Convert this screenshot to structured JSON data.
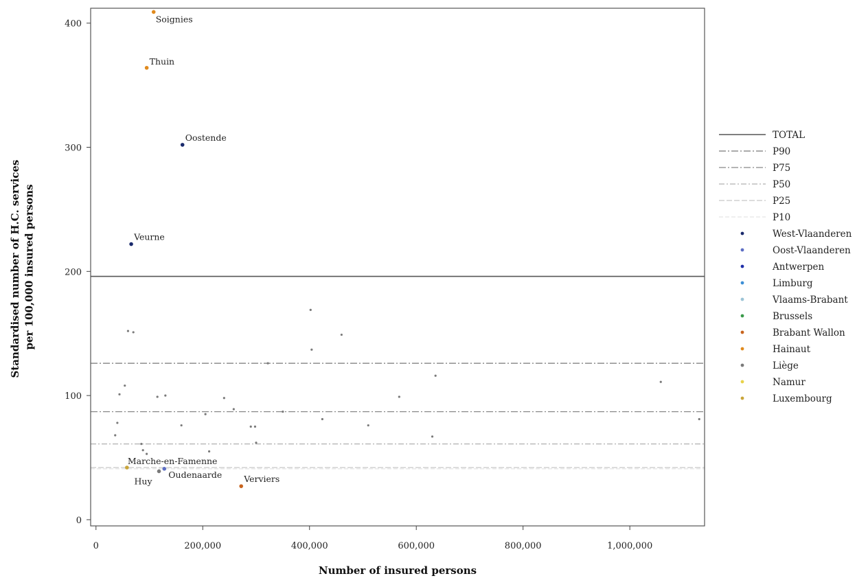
{
  "chart_data": {
    "type": "scatter",
    "xlabel": "Number of insured persons",
    "ylabel_lines": [
      "Standardised number of H.C. services",
      "per 100,000 insured persons"
    ],
    "xlim": [
      -10000,
      1140000
    ],
    "ylim": [
      -5,
      412
    ],
    "x_ticks": [
      {
        "value": 0,
        "label": "0"
      },
      {
        "value": 200000,
        "label": "200,000"
      },
      {
        "value": 400000,
        "label": "400,000"
      },
      {
        "value": 600000,
        "label": "600,000"
      },
      {
        "value": 800000,
        "label": "800,000"
      },
      {
        "value": 1000000,
        "label": "1,000,000"
      }
    ],
    "y_ticks": [
      {
        "value": 0,
        "label": "0"
      },
      {
        "value": 100,
        "label": "100"
      },
      {
        "value": 200,
        "label": "200"
      },
      {
        "value": 300,
        "label": "300"
      },
      {
        "value": 400,
        "label": "400"
      }
    ],
    "reference_lines": [
      {
        "name": "TOTAL",
        "y": 196,
        "color": "#555555",
        "dash": "",
        "width": 1.6
      },
      {
        "name": "P90",
        "y": 126,
        "color": "#777777",
        "dash": "10,3,2,3",
        "width": 1.3
      },
      {
        "name": "P75",
        "y": 87,
        "color": "#888888",
        "dash": "10,3,2,3",
        "width": 1.3
      },
      {
        "name": "P50",
        "y": 61,
        "color": "#b0b0b0",
        "dash": "8,3,2,3",
        "width": 1.2
      },
      {
        "name": "P25",
        "y": 42,
        "color": "#c8c8c8",
        "dash": "8,3",
        "width": 1.2
      },
      {
        "name": "P10",
        "y": 41,
        "color": "#dddddd",
        "dash": "6,3",
        "width": 1.0
      }
    ],
    "groups": [
      {
        "name": "West-Vlaanderen",
        "color": "#1a2a6c"
      },
      {
        "name": "Oost-Vlaanderen",
        "color": "#5c6ec4"
      },
      {
        "name": "Antwerpen",
        "color": "#1f2fa8"
      },
      {
        "name": "Limburg",
        "color": "#3d8fd6"
      },
      {
        "name": "Vlaams-Brabant",
        "color": "#9cc4d6"
      },
      {
        "name": "Brussels",
        "color": "#3a9a4a"
      },
      {
        "name": "Brabant Wallon",
        "color": "#c8641e"
      },
      {
        "name": "Hainaut",
        "color": "#e08a1e"
      },
      {
        "name": "Liège",
        "color": "#7a7a7a"
      },
      {
        "name": "Namur",
        "color": "#e8d24a"
      },
      {
        "name": "Luxembourg",
        "color": "#c9a53a"
      }
    ],
    "points": [
      {
        "x": 108000,
        "y": 409,
        "group": "Hainaut",
        "label": "Soignies"
      },
      {
        "x": 95000,
        "y": 364,
        "group": "Hainaut",
        "label": "Thuin"
      },
      {
        "x": 162000,
        "y": 302,
        "group": "West-Vlaanderen",
        "label": "Oostende"
      },
      {
        "x": 66000,
        "y": 222,
        "group": "West-Vlaanderen",
        "label": "Veurne"
      },
      {
        "x": 58000,
        "y": 42,
        "group": "Luxembourg",
        "label": "Marche-en-Famenne"
      },
      {
        "x": 118000,
        "y": 39,
        "group": "Liège",
        "label": "Huy"
      },
      {
        "x": 128000,
        "y": 41,
        "group": "Oost-Vlaanderen",
        "label": "Oudenaarde"
      },
      {
        "x": 272000,
        "y": 27,
        "group": "Brabant Wallon",
        "label": "Verviers"
      },
      {
        "x": 60000,
        "y": 152,
        "group": "Liège",
        "label": ""
      },
      {
        "x": 70000,
        "y": 151,
        "group": "Liège",
        "label": ""
      },
      {
        "x": 54000,
        "y": 108,
        "group": "Liège",
        "label": ""
      },
      {
        "x": 44000,
        "y": 101,
        "group": "Liège",
        "label": ""
      },
      {
        "x": 40000,
        "y": 78,
        "group": "Liège",
        "label": ""
      },
      {
        "x": 36000,
        "y": 68,
        "group": "Liège",
        "label": ""
      },
      {
        "x": 85000,
        "y": 61,
        "group": "Liège",
        "label": ""
      },
      {
        "x": 88000,
        "y": 56,
        "group": "Liège",
        "label": ""
      },
      {
        "x": 95000,
        "y": 53,
        "group": "Liège",
        "label": ""
      },
      {
        "x": 115000,
        "y": 99,
        "group": "Liège",
        "label": ""
      },
      {
        "x": 130000,
        "y": 100,
        "group": "Liège",
        "label": ""
      },
      {
        "x": 160000,
        "y": 76,
        "group": "Liège",
        "label": ""
      },
      {
        "x": 205000,
        "y": 85,
        "group": "Liège",
        "label": ""
      },
      {
        "x": 212000,
        "y": 55,
        "group": "Liège",
        "label": ""
      },
      {
        "x": 240000,
        "y": 98,
        "group": "Liège",
        "label": ""
      },
      {
        "x": 258000,
        "y": 89,
        "group": "Liège",
        "label": ""
      },
      {
        "x": 290000,
        "y": 75,
        "group": "Liège",
        "label": ""
      },
      {
        "x": 298000,
        "y": 75,
        "group": "Liège",
        "label": ""
      },
      {
        "x": 300000,
        "y": 62,
        "group": "Liège",
        "label": ""
      },
      {
        "x": 322000,
        "y": 126,
        "group": "Liège",
        "label": ""
      },
      {
        "x": 350000,
        "y": 87,
        "group": "Liège",
        "label": ""
      },
      {
        "x": 402000,
        "y": 169,
        "group": "Liège",
        "label": ""
      },
      {
        "x": 404000,
        "y": 137,
        "group": "Liège",
        "label": ""
      },
      {
        "x": 424000,
        "y": 81,
        "group": "Liège",
        "label": ""
      },
      {
        "x": 460000,
        "y": 149,
        "group": "Liège",
        "label": ""
      },
      {
        "x": 510000,
        "y": 76,
        "group": "Liège",
        "label": ""
      },
      {
        "x": 568000,
        "y": 99,
        "group": "Liège",
        "label": ""
      },
      {
        "x": 630000,
        "y": 67,
        "group": "Liège",
        "label": ""
      },
      {
        "x": 636000,
        "y": 116,
        "group": "Liège",
        "label": ""
      },
      {
        "x": 1058000,
        "y": 111,
        "group": "Liège",
        "label": ""
      },
      {
        "x": 1130000,
        "y": 81,
        "group": "Liège",
        "label": ""
      }
    ],
    "legend_position": "right"
  }
}
